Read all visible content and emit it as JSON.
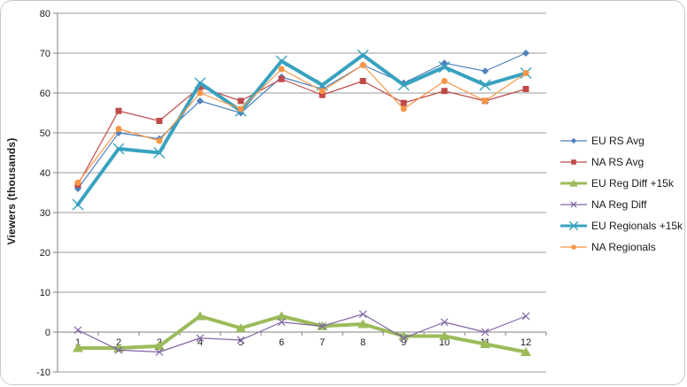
{
  "frame": {
    "background": "#FFFFFF",
    "border_color": "#C9C9C9"
  },
  "chart_data": {
    "type": "line",
    "title": "",
    "xlabel": "",
    "ylabel": "Viewers (thousands)",
    "x": [
      1,
      2,
      3,
      4,
      5,
      6,
      7,
      8,
      9,
      10,
      11,
      12
    ],
    "ylim": [
      -10,
      80
    ],
    "y_ticks": [
      80,
      70,
      60,
      50,
      40,
      30,
      20,
      10,
      0,
      -10
    ],
    "grid": true,
    "legend_position": "right",
    "grid_color": "#9B9B9B",
    "axis_color": "#808080",
    "text_color": "#1A1A1A",
    "series": [
      {
        "name": "EU RS Avg",
        "color": "#4F81BD",
        "marker": "diamond",
        "line_width": 1.2,
        "values": [
          36,
          50,
          48.5,
          58,
          55,
          64,
          61,
          67,
          62.5,
          67.5,
          65.5,
          70
        ]
      },
      {
        "name": "NA RS Avg",
        "color": "#BE4B48",
        "marker": "square",
        "line_width": 1.2,
        "values": [
          37,
          55.5,
          53,
          61.5,
          58,
          63.5,
          59.5,
          63,
          57.5,
          60.5,
          58,
          61
        ]
      },
      {
        "name": "EU Reg Diff +15k",
        "color": "#9BBB59",
        "marker": "triangle",
        "line_width": 4,
        "values": [
          -4,
          -4,
          -3.5,
          4,
          1,
          4,
          1.5,
          2,
          -1,
          -1,
          -3,
          -5
        ]
      },
      {
        "name": "NA Reg Diff",
        "color": "#8064A2",
        "marker": "x",
        "line_width": 1.2,
        "values": [
          0.5,
          -4.5,
          -5,
          -1.5,
          -2,
          2.5,
          1.5,
          4.5,
          -1.5,
          2.5,
          0,
          4
        ]
      },
      {
        "name": "EU Regionals +15k",
        "color": "#38A2BF",
        "marker": "star",
        "line_width": 4,
        "values": [
          32,
          46,
          45,
          62.5,
          55.5,
          68,
          62,
          69.5,
          62,
          66.5,
          62,
          65
        ]
      },
      {
        "name": "NA Regionals",
        "color": "#F79646",
        "marker": "circle",
        "line_width": 1.2,
        "values": [
          37.5,
          51,
          48,
          60,
          56,
          66,
          60.5,
          67,
          56,
          63,
          58,
          65
        ]
      }
    ]
  }
}
